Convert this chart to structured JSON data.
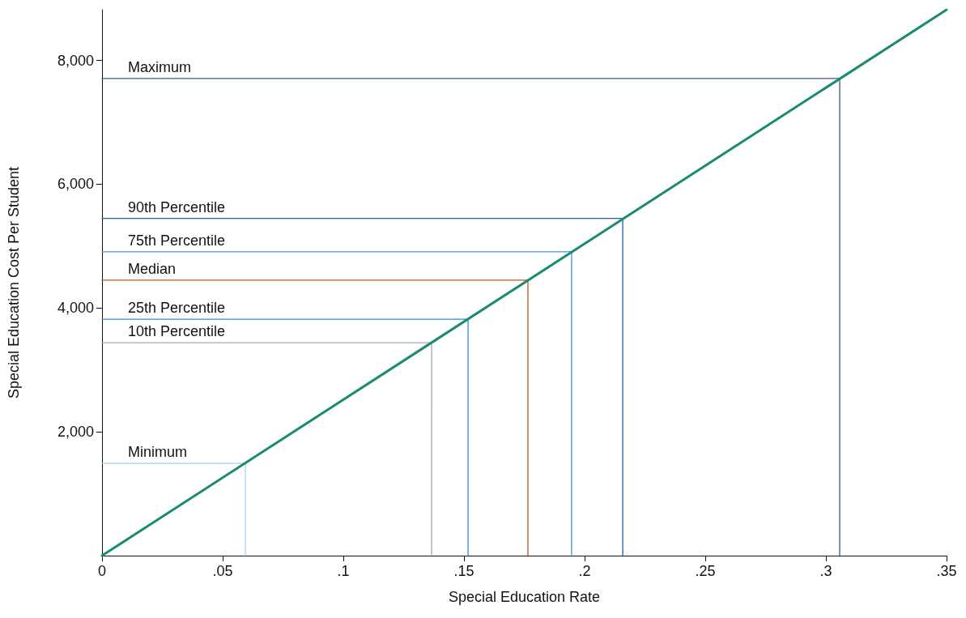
{
  "chart_data": {
    "type": "line",
    "xlabel": "Special Education Rate",
    "ylabel": "Special Education Cost Per Student",
    "xlim": [
      0,
      0.35
    ],
    "ylim": [
      0,
      8820
    ],
    "xticks": [
      0,
      {
        "value": 0.05,
        "label": ".05"
      },
      {
        "value": 0.1,
        "label": ".1"
      },
      {
        "value": 0.15,
        "label": ".15"
      },
      {
        "value": 0.2,
        "label": ".2"
      },
      {
        "value": 0.25,
        "label": ".25"
      },
      {
        "value": 0.3,
        "label": ".3"
      },
      {
        "value": 0.35,
        "label": ".35"
      }
    ],
    "yticks": [
      {
        "value": 2000,
        "label": "2,000"
      },
      {
        "value": 4000,
        "label": "4,000"
      },
      {
        "value": 6000,
        "label": "6,000"
      },
      {
        "value": 8000,
        "label": "8,000"
      }
    ],
    "grid": false,
    "legend": false,
    "marker": "none",
    "line_style": "solid",
    "series": [
      {
        "color": "#1a8a70",
        "x": [
          0,
          0.35
        ],
        "values": [
          0,
          8820
        ]
      },
      {
        "name": "Maximum",
        "color": "#3d5a78",
        "x": [
          0,
          0.3057,
          0.3057
        ],
        "values": [
          7710,
          7710,
          0
        ]
      },
      {
        "name": "90th Percentile",
        "color": "#1f5fa8",
        "x": [
          0,
          0.2158,
          0.2158
        ],
        "values": [
          5450,
          5450,
          0
        ]
      },
      {
        "name": "75th Percentile",
        "color": "#4a90d9",
        "x": [
          0,
          0.1946,
          0.1946
        ],
        "values": [
          4910,
          4910,
          0
        ]
      },
      {
        "name": "Median",
        "color": "#c8501e",
        "x": [
          0,
          0.1765,
          0.1765
        ],
        "values": [
          4450,
          4450,
          0
        ]
      },
      {
        "name": "25th Percentile",
        "color": "#2e8ae6",
        "x": [
          0,
          0.1517,
          0.1517
        ],
        "values": [
          3820,
          3820,
          0
        ]
      },
      {
        "name": "10th Percentile",
        "color": "#a0a8b0",
        "x": [
          0,
          0.1366,
          0.1366
        ],
        "values": [
          3440,
          3440,
          0
        ]
      },
      {
        "name": "Minimum",
        "color": "#a8d0f0",
        "x": [
          0,
          0.0594,
          0.0594
        ],
        "values": [
          1490,
          1490,
          0
        ]
      }
    ]
  }
}
